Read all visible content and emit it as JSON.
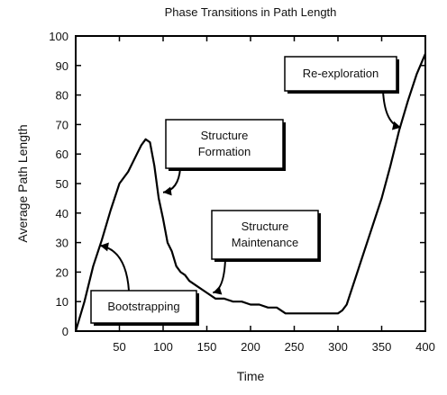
{
  "chart_data": {
    "type": "line",
    "title": "Phase Transitions in Path Length",
    "xlabel": "Time",
    "ylabel": "Average Path Length",
    "xlim": [
      0,
      400
    ],
    "ylim": [
      0,
      100
    ],
    "x_ticks": [
      50,
      100,
      150,
      200,
      250,
      300,
      350,
      400
    ],
    "y_ticks": [
      0,
      10,
      20,
      30,
      40,
      50,
      60,
      70,
      80,
      90,
      100
    ],
    "grid": false,
    "legend": "none",
    "series": [
      {
        "x": [
          0,
          10,
          20,
          30,
          40,
          50,
          60,
          70,
          75,
          80,
          85,
          90,
          95,
          100,
          105,
          110,
          115,
          120,
          125,
          130,
          140,
          150,
          160,
          170,
          180,
          190,
          200,
          210,
          220,
          230,
          240,
          250,
          260,
          270,
          280,
          290,
          300,
          305,
          310,
          320,
          330,
          340,
          350,
          360,
          370,
          380,
          390,
          400
        ],
        "y": [
          0,
          10,
          22,
          31,
          41,
          50,
          54,
          60,
          63,
          65,
          64,
          56,
          45,
          38,
          30,
          27,
          22,
          20,
          19,
          17,
          15,
          13,
          11,
          11,
          10,
          10,
          9,
          9,
          8,
          8,
          6,
          6,
          6,
          6,
          6,
          6,
          6,
          7,
          9,
          18,
          27,
          36,
          45,
          56,
          68,
          78,
          87,
          94
        ]
      }
    ],
    "annotations": [
      {
        "text": [
          "Bootstrapping"
        ],
        "x": 28,
        "y": 29
      },
      {
        "text": [
          "Structure",
          "Formation"
        ],
        "x": 100,
        "y": 47
      },
      {
        "text": [
          "Structure",
          "Maintenance"
        ],
        "x": 157,
        "y": 13
      },
      {
        "text": [
          "Re-exploration"
        ],
        "x": 372,
        "y": 69
      }
    ]
  }
}
